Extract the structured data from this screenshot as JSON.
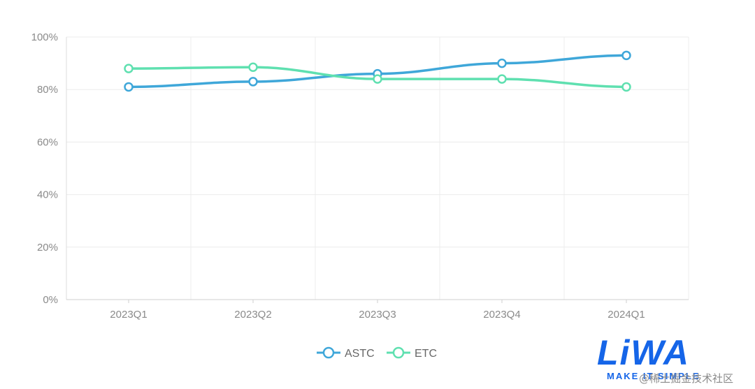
{
  "chart_data": {
    "type": "line",
    "categories": [
      "2023Q1",
      "2023Q2",
      "2023Q3",
      "2023Q4",
      "2024Q1"
    ],
    "series": [
      {
        "name": "ASTC",
        "values": [
          81,
          83,
          86,
          90,
          93
        ],
        "color": "#3fa7d9"
      },
      {
        "name": "ETC",
        "values": [
          88,
          88.5,
          84,
          84,
          81
        ],
        "color": "#5fe0b0"
      }
    ],
    "yticks": [
      "0%",
      "20%",
      "40%",
      "60%",
      "80%",
      "100%"
    ],
    "ylim": [
      0,
      100
    ],
    "grid": true,
    "legend_position": "bottom-center",
    "smooth": true
  },
  "logo": {
    "text": "LiWA",
    "tagline": "MAKE IT SIMPLE"
  },
  "watermark": "@稀土掘金技术社区"
}
